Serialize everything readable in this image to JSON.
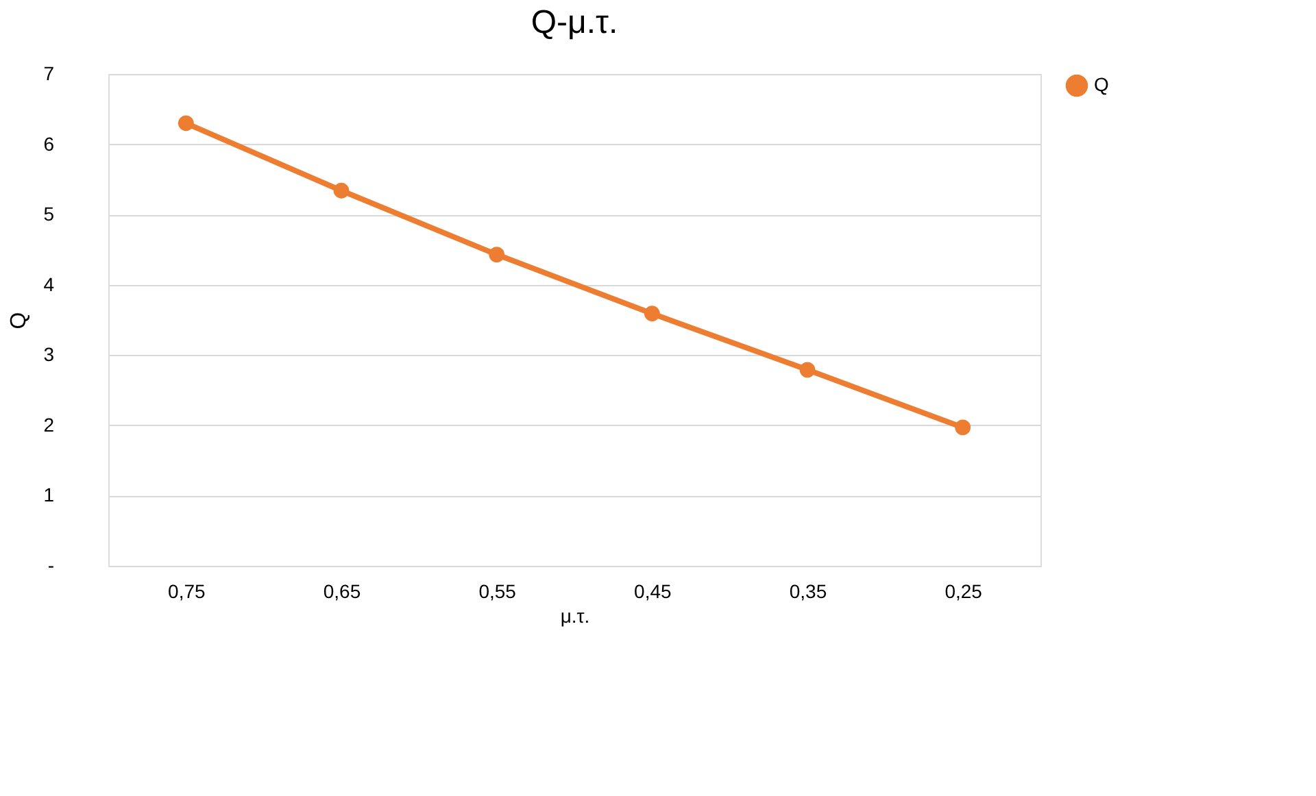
{
  "chart_data": {
    "type": "line",
    "title": "Q-μ.τ.",
    "xlabel": "μ.τ.",
    "ylabel": "Q",
    "categories": [
      "0,75",
      "0,65",
      "0,55",
      "0,45",
      "0,35",
      "0,25"
    ],
    "series": [
      {
        "name": "Q",
        "color": "#ed7d31",
        "values": [
          6.3,
          5.34,
          4.43,
          3.59,
          2.79,
          1.97
        ]
      }
    ],
    "ylim": [
      0,
      7
    ],
    "yticks": [
      {
        "value": 0,
        "label": "-"
      },
      1,
      2,
      3,
      4,
      5,
      6,
      7
    ],
    "grid": "y",
    "legend": "right",
    "marker": "circle",
    "line_style": "solid"
  }
}
